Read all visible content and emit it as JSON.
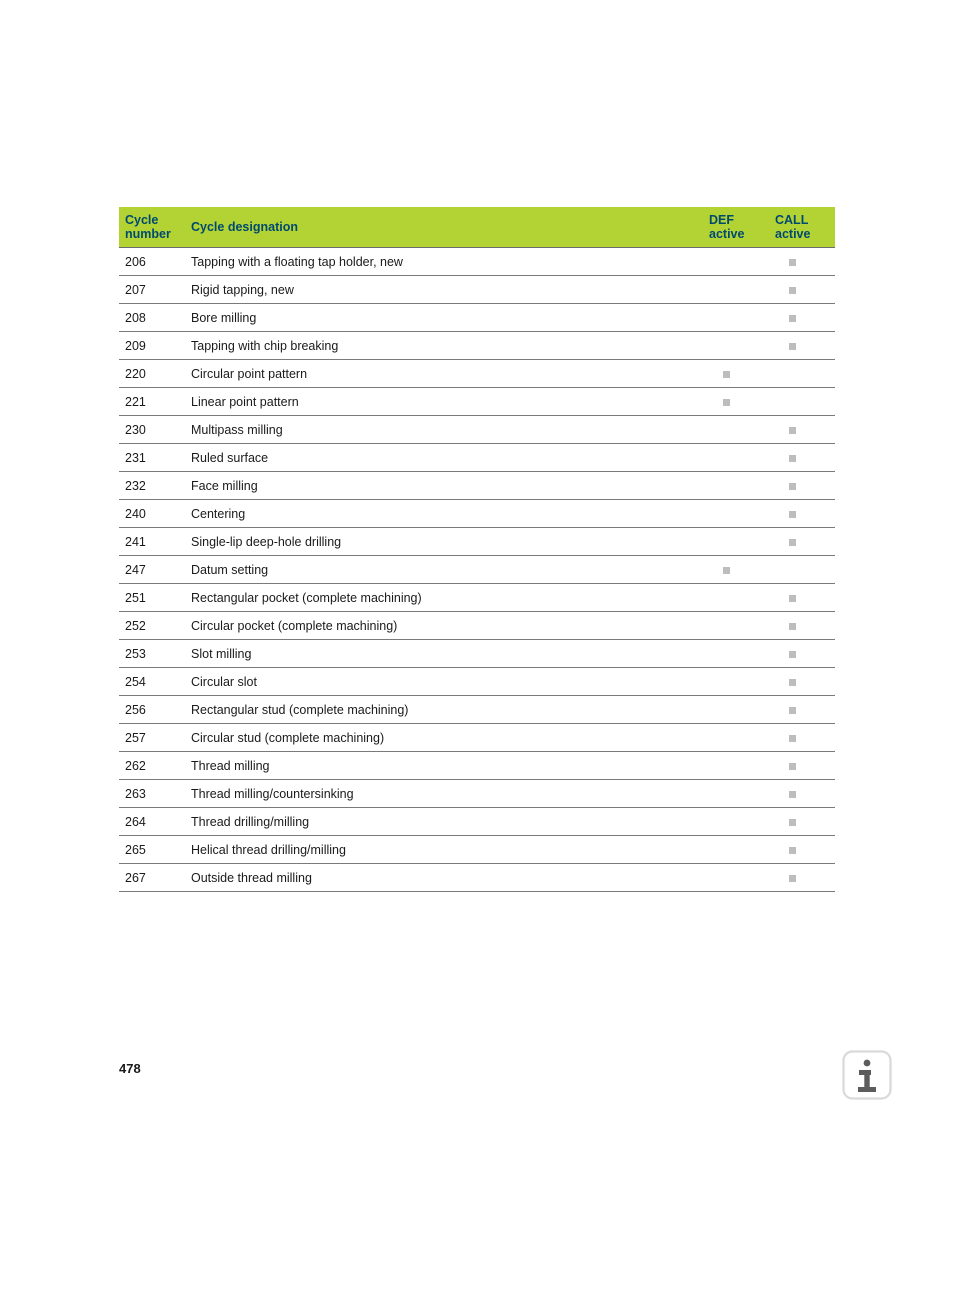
{
  "table": {
    "headers": {
      "cycle_number_l1": "Cycle",
      "cycle_number_l2": "number",
      "designation": "Cycle designation",
      "def_l1": "DEF",
      "def_l2": "active",
      "call_l1": "CALL",
      "call_l2": "active"
    },
    "rows": [
      {
        "num": "206",
        "desig": "Tapping with a floating tap holder, new",
        "def": false,
        "call": true
      },
      {
        "num": "207",
        "desig": "Rigid tapping, new",
        "def": false,
        "call": true
      },
      {
        "num": "208",
        "desig": "Bore milling",
        "def": false,
        "call": true
      },
      {
        "num": "209",
        "desig": "Tapping with chip breaking",
        "def": false,
        "call": true
      },
      {
        "num": "220",
        "desig": "Circular point pattern",
        "def": true,
        "call": false
      },
      {
        "num": "221",
        "desig": "Linear point pattern",
        "def": true,
        "call": false
      },
      {
        "num": "230",
        "desig": "Multipass milling",
        "def": false,
        "call": true
      },
      {
        "num": "231",
        "desig": "Ruled surface",
        "def": false,
        "call": true
      },
      {
        "num": "232",
        "desig": "Face milling",
        "def": false,
        "call": true
      },
      {
        "num": "240",
        "desig": "Centering",
        "def": false,
        "call": true
      },
      {
        "num": "241",
        "desig": "Single-lip deep-hole drilling",
        "def": false,
        "call": true
      },
      {
        "num": "247",
        "desig": "Datum setting",
        "def": true,
        "call": false
      },
      {
        "num": "251",
        "desig": "Rectangular pocket (complete machining)",
        "def": false,
        "call": true
      },
      {
        "num": "252",
        "desig": "Circular pocket (complete machining)",
        "def": false,
        "call": true
      },
      {
        "num": "253",
        "desig": "Slot milling",
        "def": false,
        "call": true
      },
      {
        "num": "254",
        "desig": "Circular slot",
        "def": false,
        "call": true
      },
      {
        "num": "256",
        "desig": "Rectangular stud (complete machining)",
        "def": false,
        "call": true
      },
      {
        "num": "257",
        "desig": "Circular stud (complete machining)",
        "def": false,
        "call": true
      },
      {
        "num": "262",
        "desig": "Thread milling",
        "def": false,
        "call": true
      },
      {
        "num": "263",
        "desig": "Thread milling/countersinking",
        "def": false,
        "call": true
      },
      {
        "num": "264",
        "desig": "Thread drilling/milling",
        "def": false,
        "call": true
      },
      {
        "num": "265",
        "desig": "Helical thread drilling/milling",
        "def": false,
        "call": true
      },
      {
        "num": "267",
        "desig": "Outside thread milling",
        "def": false,
        "call": true
      }
    ],
    "colors": {
      "header_bg": "#b3d335",
      "header_text": "#004a6f",
      "row_border": "#7a7a7a",
      "marker_fill": "#bdbdbd",
      "body_text": "#1a1a1a",
      "page_bg": "#ffffff"
    },
    "font_size_pt": 9.5
  },
  "footer": {
    "page_number": "478",
    "info_icon_box_color": "#d9d9d9",
    "info_icon_glyph_color": "#5c5c5c"
  }
}
